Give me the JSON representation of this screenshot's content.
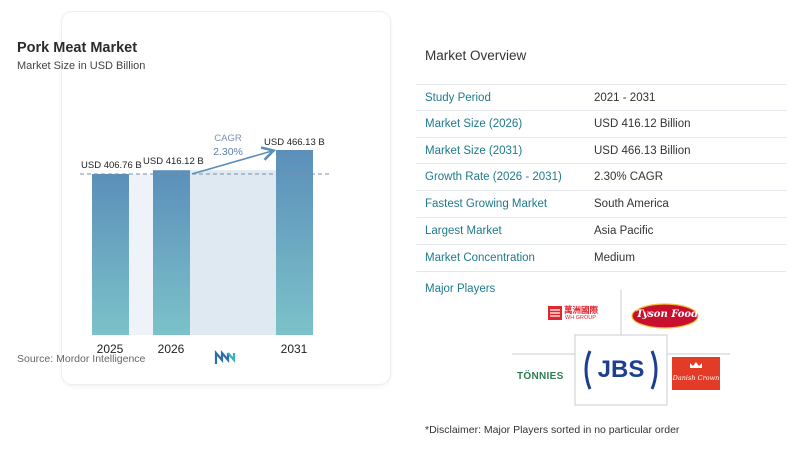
{
  "chart": {
    "title": "Pork Meat Market",
    "subtitle": "Market Size in USD Billion",
    "source": "Source:  Mordor Intelligence",
    "cagr_label": "CAGR",
    "cagr_value": "2.30%"
  },
  "chart_data": {
    "type": "bar",
    "title": "Pork Meat Market",
    "subtitle": "Market Size in USD Billion",
    "categories": [
      "2025",
      "2026",
      "2031"
    ],
    "values": [
      406.76,
      416.12,
      466.13
    ],
    "data_labels": [
      "USD 406.76 B",
      "USD 416.12 B",
      "USD 466.13 B"
    ],
    "ylabel": "",
    "xlabel": "",
    "ylim": [
      0,
      466.13
    ],
    "grid": false,
    "colors": {
      "bar_top": "#5b8fba",
      "bar_bottom": "#7cc2c9",
      "band": "#dfe9f2",
      "arrow": "#5b8fba",
      "dash": "#7a8fa8"
    }
  },
  "overview": {
    "title": "Market Overview",
    "rows": [
      {
        "label": "Study Period",
        "value": "2021 - 2031"
      },
      {
        "label": "Market Size (2026)",
        "value": "USD 416.12 Billion"
      },
      {
        "label": "Market Size (2031)",
        "value": "USD 466.13 Billion"
      },
      {
        "label": "Growth Rate (2026 - 2031)",
        "value": "2.30% CAGR"
      },
      {
        "label": "Fastest Growing Market",
        "value": "South America"
      },
      {
        "label": "Largest Market",
        "value": "Asia Pacific"
      },
      {
        "label": "Market Concentration",
        "value": "Medium"
      }
    ]
  },
  "players": {
    "title": "Major Players",
    "logos": {
      "wh_chinese": "萬洲國際",
      "wh": "WH GROUP",
      "tyson": "Tyson Foods",
      "jbs": "JBS",
      "tonnies": "TÖNNIES",
      "danish": "Danish Crown"
    }
  },
  "disclaimer": "*Disclaimer: Major Players sorted in no particular order"
}
